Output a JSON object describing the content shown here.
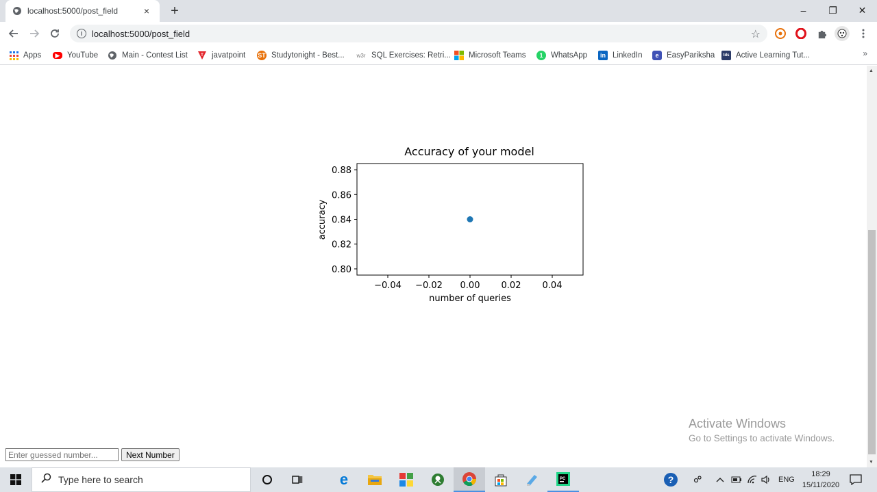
{
  "browser": {
    "tab_title": "localhost:5000/post_field",
    "tab_close": "×",
    "new_tab": "+",
    "url": "localhost:5000/post_field",
    "window_controls": {
      "minimize": "–",
      "restore": "❐",
      "close": "✕"
    }
  },
  "bookmarks": [
    {
      "label": "Apps",
      "icon": "apps-grid-icon"
    },
    {
      "label": "YouTube",
      "icon": "youtube-icon"
    },
    {
      "label": "Main - Contest List",
      "icon": "globe-icon"
    },
    {
      "label": "javatpoint",
      "icon": "javatpoint-icon"
    },
    {
      "label": "Studytonight - Best...",
      "icon": "studytonight-icon"
    },
    {
      "label": "SQL Exercises: Retri...",
      "icon": "w3r-icon"
    },
    {
      "label": "Microsoft Teams",
      "icon": "microsoft-icon"
    },
    {
      "label": "WhatsApp",
      "icon": "whatsapp-icon"
    },
    {
      "label": "LinkedIn",
      "icon": "linkedin-icon"
    },
    {
      "label": "EasyPariksha",
      "icon": "easypariksha-icon"
    },
    {
      "label": "Active Learning Tut...",
      "icon": "tds-icon"
    }
  ],
  "bookmarks_more": "»",
  "chart_data": {
    "type": "scatter",
    "title": "Accuracy of your model",
    "xlabel": "number of queries",
    "ylabel": "accuracy",
    "xlim": [
      -0.055,
      0.055
    ],
    "ylim": [
      0.795,
      0.885
    ],
    "xticks": [
      -0.04,
      -0.02,
      0.0,
      0.02,
      0.04
    ],
    "xtick_labels": [
      "−0.04",
      "−0.02",
      "0.00",
      "0.02",
      "0.04"
    ],
    "yticks": [
      0.8,
      0.82,
      0.84,
      0.86,
      0.88
    ],
    "ytick_labels": [
      "0.80",
      "0.82",
      "0.84",
      "0.86",
      "0.88"
    ],
    "points": [
      {
        "x": 0,
        "y": 0.84
      }
    ],
    "point_color": "#1f77b4",
    "grid": false
  },
  "form": {
    "guess_placeholder": "Enter guessed number...",
    "next_label": "Next Number"
  },
  "watermark": {
    "title": "Activate Windows",
    "subtitle": "Go to Settings to activate Windows."
  },
  "taskbar": {
    "search_placeholder": "Type here to search",
    "language": "ENG",
    "time": "18:29",
    "date": "15/11/2020"
  }
}
